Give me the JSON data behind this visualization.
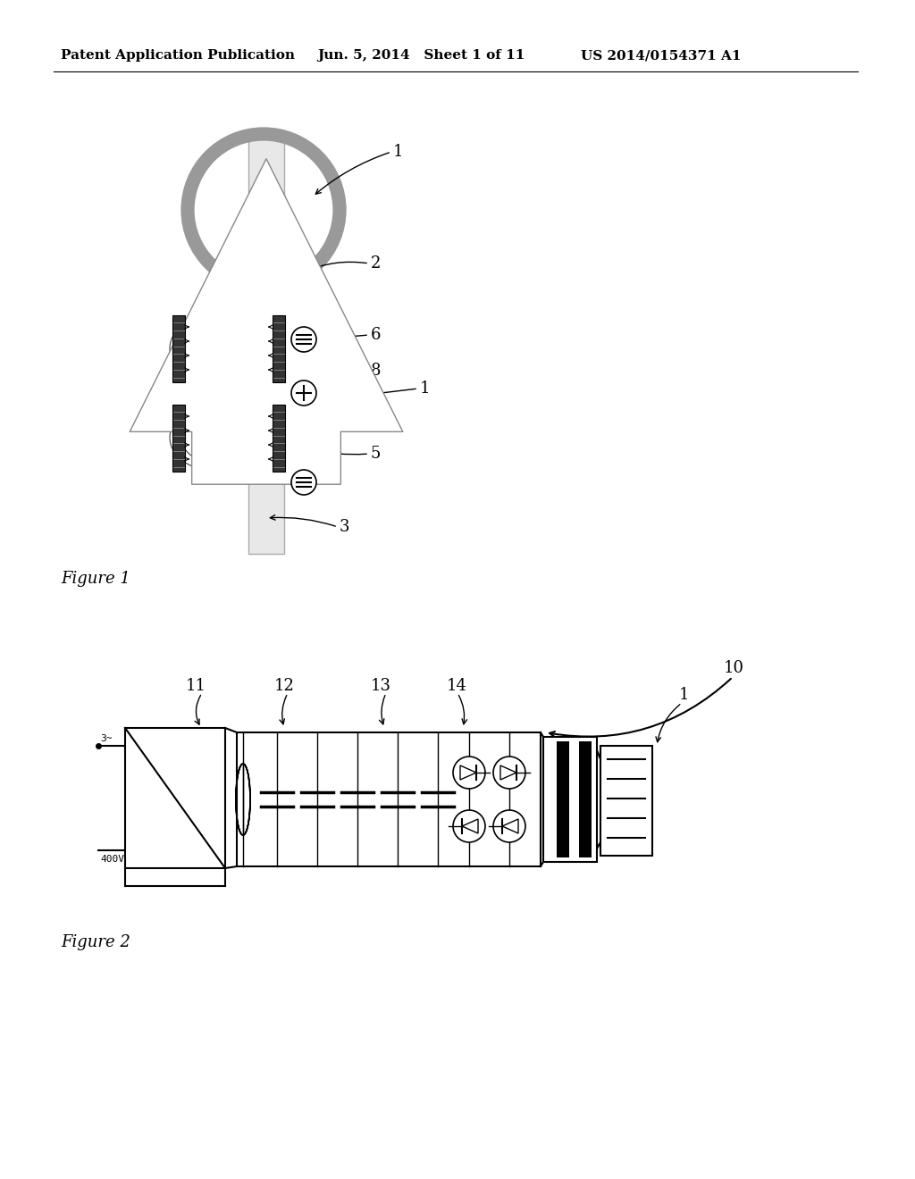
{
  "bg_color": "#ffffff",
  "header_left": "Patent Application Publication",
  "header_mid": "Jun. 5, 2014   Sheet 1 of 11",
  "header_right": "US 2014/0154371 A1",
  "fig1_label": "Figure 1",
  "fig2_label": "Figure 2",
  "text_color": "#000000",
  "gray_ring_color": "#999999",
  "electrode_color": "#555555",
  "tube_color": "#dddddd"
}
